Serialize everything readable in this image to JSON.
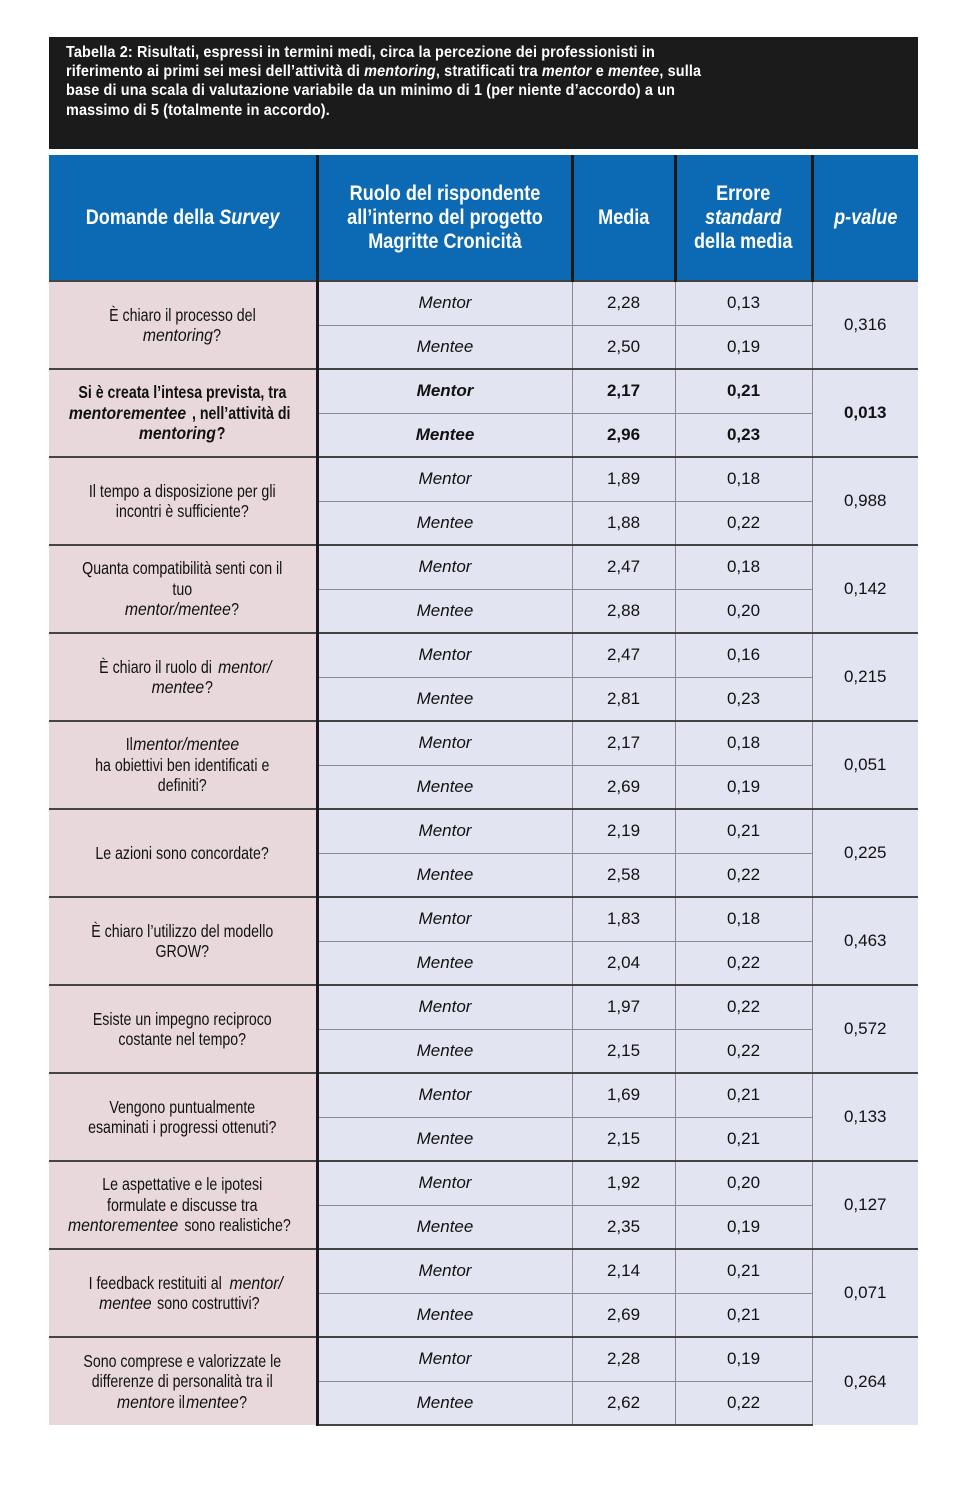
{
  "caption": {
    "line1": "Tabella 2:  Risultati, espressi in termini medi, circa la percezione dei professionisti in",
    "line2_a": "riferimento ai primi sei mesi dell’attività di ",
    "line2_b": "mentoring",
    "line2_c": ", stratificati tra ",
    "line2_d": "mentor",
    "line2_e": " e ",
    "line2_f": "mentee",
    "line2_g": ", sulla",
    "line3": "base di una scala di valutazione variabile da un minimo di 1 (per niente d’accordo) a un",
    "line4": "massimo di 5 (totalmente in accordo)."
  },
  "headers": {
    "domande_a": "Domande della ",
    "domande_b": "Survey",
    "ruolo": "Ruolo del rispondente all’interno del progetto Magritte Cronicità",
    "media": "Media",
    "errore_a": "Errore",
    "errore_b": "standard",
    "errore_c": "della media",
    "pvalue": "p-value"
  },
  "rows": [
    {
      "q": [
        [
          "È chiaro il processo del ",
          0
        ],
        [
          "mentoring",
          1
        ],
        [
          "?",
          0
        ]
      ],
      "mentor": [
        "Mentor",
        "2,28",
        "0,13"
      ],
      "mentee": [
        "Mentee",
        "2,50",
        "0,19"
      ],
      "p": "0,316",
      "bold": false
    },
    {
      "q": [
        [
          "Si è creata l’intesa prevista, tra ",
          0
        ],
        [
          "mentor",
          1
        ],
        [
          " e ",
          0
        ],
        [
          "mentee",
          1
        ],
        [
          ", nell’attività di ",
          0
        ],
        [
          "mentoring",
          1
        ],
        [
          "?",
          0
        ]
      ],
      "mentor": [
        "Mentor",
        "2,17",
        "0,21"
      ],
      "mentee": [
        "Mentee",
        "2,96",
        "0,23"
      ],
      "p": "0,013",
      "bold": true
    },
    {
      "q": [
        [
          "Il tempo a disposizione per gli incontri è sufficiente?",
          0
        ]
      ],
      "mentor": [
        "Mentor",
        "1,89",
        "0,18"
      ],
      "mentee": [
        "Mentee",
        "1,88",
        "0,22"
      ],
      "p": "0,988",
      "bold": false
    },
    {
      "q": [
        [
          "Quanta compatibilità senti con il tuo ",
          0
        ],
        [
          "mentor/mentee",
          1
        ],
        [
          "?",
          0
        ]
      ],
      "mentor": [
        "Mentor",
        "2,47",
        "0,18"
      ],
      "mentee": [
        "Mentee",
        "2,88",
        "0,20"
      ],
      "p": "0,142",
      "bold": false
    },
    {
      "q": [
        [
          "È chiaro il ruolo di ",
          0
        ],
        [
          "mentor/ mentee",
          1
        ],
        [
          "?",
          0
        ]
      ],
      "mentor": [
        "Mentor",
        "2,47",
        "0,16"
      ],
      "mentee": [
        "Mentee",
        "2,81",
        "0,23"
      ],
      "p": "0,215",
      "bold": false
    },
    {
      "q": [
        [
          "Il ",
          0
        ],
        [
          "mentor/mentee",
          1
        ],
        [
          " ha obiettivi ben identificati e definiti?",
          0
        ]
      ],
      "mentor": [
        "Mentor",
        "2,17",
        "0,18"
      ],
      "mentee": [
        "Mentee",
        "2,69",
        "0,19"
      ],
      "p": "0,051",
      "bold": false
    },
    {
      "q": [
        [
          "Le azioni sono concordate?",
          0
        ]
      ],
      "mentor": [
        "Mentor",
        "2,19",
        "0,21"
      ],
      "mentee": [
        "Mentee",
        "2,58",
        "0,22"
      ],
      "p": "0,225",
      "bold": false
    },
    {
      "q": [
        [
          "È chiaro l’utilizzo del modello GROW?",
          0
        ]
      ],
      "mentor": [
        "Mentor",
        "1,83",
        "0,18"
      ],
      "mentee": [
        "Mentee",
        "2,04",
        "0,22"
      ],
      "p": "0,463",
      "bold": false
    },
    {
      "q": [
        [
          "Esiste un impegno reciproco costante nel tempo?",
          0
        ]
      ],
      "mentor": [
        "Mentor",
        "1,97",
        "0,22"
      ],
      "mentee": [
        "Mentee",
        "2,15",
        "0,22"
      ],
      "p": "0,572",
      "bold": false
    },
    {
      "q": [
        [
          "Vengono puntualmente esaminati i progressi ottenuti?",
          0
        ]
      ],
      "mentor": [
        "Mentor",
        "1,69",
        "0,21"
      ],
      "mentee": [
        "Mentee",
        "2,15",
        "0,21"
      ],
      "p": "0,133",
      "bold": false
    },
    {
      "q": [
        [
          "Le aspettative e le ipotesi formulate e discusse tra ",
          0
        ],
        [
          "mentor",
          1
        ],
        [
          " e ",
          0
        ],
        [
          "mentee",
          1
        ],
        [
          " sono realistiche?",
          0
        ]
      ],
      "mentor": [
        "Mentor",
        "1,92",
        "0,20"
      ],
      "mentee": [
        "Mentee",
        "2,35",
        "0,19"
      ],
      "p": "0,127",
      "bold": false
    },
    {
      "q": [
        [
          "I feedback restituiti al ",
          0
        ],
        [
          "mentor/ mentee",
          1
        ],
        [
          " sono costruttivi?",
          0
        ]
      ],
      "mentor": [
        "Mentor",
        "2,14",
        "0,21"
      ],
      "mentee": [
        "Mentee",
        "2,69",
        "0,21"
      ],
      "p": "0,071",
      "bold": false
    },
    {
      "q": [
        [
          "Sono comprese e valorizzate le differenze di personalità tra il ",
          0
        ],
        [
          "mentor",
          1
        ],
        [
          " e il ",
          0
        ],
        [
          "mentee",
          1
        ],
        [
          "?",
          0
        ]
      ],
      "mentor": [
        "Mentor",
        "2,28",
        "0,19"
      ],
      "mentee": [
        "Mentee",
        "2,62",
        "0,22"
      ],
      "p": "0,264",
      "bold": false
    }
  ],
  "colors": {
    "header_blue": "#0c6ab4",
    "question_bg": "#e8d8dc",
    "data_bg": "#e2e4f2",
    "caption_bg": "#1b1b1b"
  }
}
